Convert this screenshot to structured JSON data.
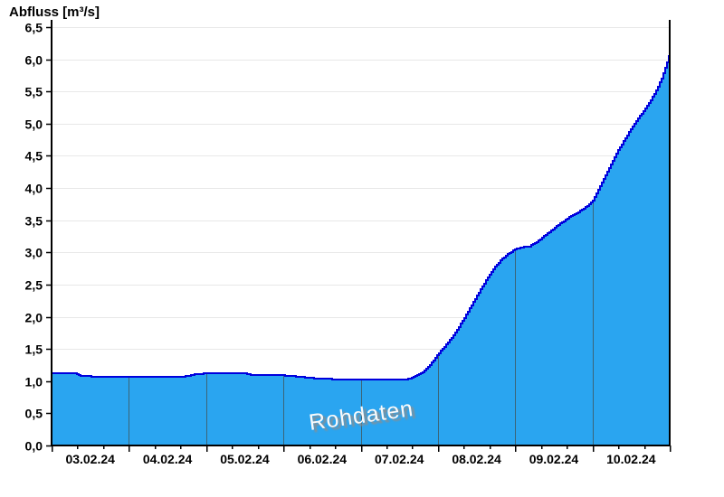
{
  "chart_data": {
    "type": "area",
    "title": "Abfluss [m³/s]",
    "watermark": "Rohdaten",
    "x_unit": "days since 03.02.2024 00:00",
    "x_range": [
      0,
      8
    ],
    "ylim": [
      0,
      6.5
    ],
    "y_tick_step": 0.5,
    "y_tick_labels": [
      "0,0",
      "0,5",
      "1,0",
      "1,5",
      "2,0",
      "2,5",
      "3,0",
      "3,5",
      "4,0",
      "4,5",
      "5,0",
      "5,5",
      "6,0",
      "6,5"
    ],
    "x_day_labels": [
      "03.02.24",
      "04.02.24",
      "05.02.24",
      "06.02.24",
      "07.02.24",
      "08.02.24",
      "09.02.24",
      "10.02.24"
    ],
    "minor_ticks_per_day": 3,
    "grid": true,
    "legend": "none",
    "colors": {
      "fill": "#2AA5F0",
      "line": "#0000DD",
      "day_divider": "#3B6578",
      "grid": "#E8E8E8",
      "axis": "#000000",
      "watermark": "#FAFAFA",
      "watermark_shadow": "#8E8E8E"
    },
    "series_name": "Abfluss Rohdaten",
    "points": [
      [
        0.0,
        1.12
      ],
      [
        0.3,
        1.12
      ],
      [
        0.35,
        1.09
      ],
      [
        0.55,
        1.07
      ],
      [
        0.6,
        1.065
      ],
      [
        1.0,
        1.065
      ],
      [
        1.4,
        1.06
      ],
      [
        1.7,
        1.07
      ],
      [
        1.78,
        1.085
      ],
      [
        1.88,
        1.11
      ],
      [
        2.0,
        1.12
      ],
      [
        2.3,
        1.13
      ],
      [
        2.5,
        1.12
      ],
      [
        2.56,
        1.1
      ],
      [
        2.9,
        1.1
      ],
      [
        3.0,
        1.09
      ],
      [
        3.2,
        1.07
      ],
      [
        3.3,
        1.055
      ],
      [
        3.45,
        1.04
      ],
      [
        3.65,
        1.03
      ],
      [
        3.9,
        1.025
      ],
      [
        4.1,
        1.02
      ],
      [
        4.5,
        1.02
      ],
      [
        4.6,
        1.03
      ],
      [
        4.66,
        1.05
      ],
      [
        4.72,
        1.08
      ],
      [
        4.78,
        1.12
      ],
      [
        4.83,
        1.17
      ],
      [
        4.88,
        1.23
      ],
      [
        4.93,
        1.3
      ],
      [
        5.0,
        1.42
      ],
      [
        5.05,
        1.49
      ],
      [
        5.1,
        1.56
      ],
      [
        5.15,
        1.63
      ],
      [
        5.2,
        1.71
      ],
      [
        5.25,
        1.8
      ],
      [
        5.3,
        1.9
      ],
      [
        5.35,
        2.0
      ],
      [
        5.4,
        2.11
      ],
      [
        5.45,
        2.21
      ],
      [
        5.5,
        2.32
      ],
      [
        5.55,
        2.42
      ],
      [
        5.6,
        2.52
      ],
      [
        5.65,
        2.62
      ],
      [
        5.7,
        2.71
      ],
      [
        5.75,
        2.79
      ],
      [
        5.8,
        2.86
      ],
      [
        5.85,
        2.92
      ],
      [
        5.9,
        2.97
      ],
      [
        5.95,
        3.01
      ],
      [
        6.0,
        3.05
      ],
      [
        6.08,
        3.08
      ],
      [
        6.18,
        3.09
      ],
      [
        6.25,
        3.14
      ],
      [
        6.32,
        3.2
      ],
      [
        6.4,
        3.28
      ],
      [
        6.48,
        3.35
      ],
      [
        6.55,
        3.42
      ],
      [
        6.62,
        3.48
      ],
      [
        6.7,
        3.55
      ],
      [
        6.78,
        3.6
      ],
      [
        6.85,
        3.65
      ],
      [
        6.92,
        3.71
      ],
      [
        6.97,
        3.76
      ],
      [
        7.0,
        3.8
      ],
      [
        7.05,
        3.92
      ],
      [
        7.1,
        4.04
      ],
      [
        7.15,
        4.16
      ],
      [
        7.2,
        4.28
      ],
      [
        7.25,
        4.4
      ],
      [
        7.3,
        4.52
      ],
      [
        7.35,
        4.62
      ],
      [
        7.4,
        4.72
      ],
      [
        7.45,
        4.82
      ],
      [
        7.5,
        4.92
      ],
      [
        7.55,
        5.01
      ],
      [
        7.6,
        5.1
      ],
      [
        7.65,
        5.18
      ],
      [
        7.7,
        5.27
      ],
      [
        7.75,
        5.36
      ],
      [
        7.8,
        5.46
      ],
      [
        7.85,
        5.58
      ],
      [
        7.9,
        5.72
      ],
      [
        7.95,
        5.9
      ],
      [
        8.0,
        6.1
      ]
    ]
  }
}
